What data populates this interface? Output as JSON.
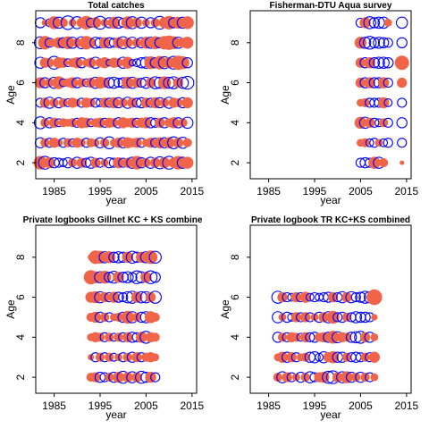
{
  "colors": {
    "positive": "#f06449",
    "negative": "#0000ff",
    "axis": "#000000"
  },
  "chart_data": [
    {
      "type": "scatter",
      "title": "Total catches",
      "xlabel": "year",
      "ylabel": "Age",
      "xlim": [
        1981,
        2016
      ],
      "ylim": [
        1.2,
        9.6
      ],
      "xticks": [
        1985,
        1995,
        2005,
        2015
      ],
      "yticks": [
        2,
        4,
        6,
        8
      ],
      "years": [
        1982,
        1983,
        1984,
        1985,
        1986,
        1987,
        1988,
        1989,
        1990,
        1991,
        1992,
        1993,
        1994,
        1995,
        1996,
        1997,
        1998,
        1999,
        2000,
        2001,
        2002,
        2003,
        2004,
        2005,
        2006,
        2007,
        2008,
        2009,
        2010,
        2011,
        2012,
        2013,
        2014
      ],
      "residuals": {
        "9": [
          -0.5,
          0.2,
          -0.3,
          0.8,
          -0.6,
          0.4,
          -0.9,
          0.3,
          -0.7,
          0.5,
          0.9,
          -0.4,
          0.6,
          -0.8,
          0.3,
          -0.5,
          0.7,
          -0.6,
          -0.4,
          0.8,
          -0.7,
          0.5,
          -0.6,
          0.3,
          -0.5,
          0.4,
          -0.8,
          0.6,
          0.9,
          -0.5,
          0.7,
          -0.6,
          0.8
        ],
        "8": [
          -0.7,
          0.9,
          -0.4,
          0.3,
          0.6,
          -0.5,
          0.8,
          -0.6,
          0.4,
          -0.7,
          0.9,
          0.5,
          -0.6,
          -0.5,
          0.6,
          -0.5,
          -0.4,
          0.6,
          -0.7,
          0.5,
          -0.6,
          0.4,
          -0.5,
          0.7,
          -0.6,
          0.8,
          -0.5,
          0.9,
          1.0,
          0.8,
          -0.6,
          0.5,
          0.7
        ],
        "7": [
          -0.6,
          0.5,
          0.4,
          -0.8,
          0.6,
          0.5,
          -0.3,
          0.4,
          0.6,
          -0.5,
          0.3,
          0.5,
          -0.6,
          0.4,
          0.6,
          -0.2,
          0.5,
          0.4,
          -0.6,
          0.7,
          -0.2,
          -0.3,
          -0.5,
          -0.6,
          0.8,
          -0.5,
          0.9,
          -0.7,
          0.6,
          -0.8,
          1.0,
          0.8,
          -0.5
        ],
        "6": [
          0.6,
          -0.5,
          0.4,
          -0.6,
          0.8,
          -0.3,
          0.4,
          0.6,
          -0.5,
          0.4,
          -0.3,
          0.5,
          -0.6,
          0.7,
          0.5,
          -0.5,
          -0.6,
          -0.4,
          -0.5,
          0.7,
          -0.6,
          0.5,
          -0.4,
          -0.6,
          0.5,
          -0.7,
          -0.6,
          0.8,
          -0.6,
          -0.7,
          0.5,
          -0.6,
          -0.8
        ],
        "5": [
          -0.4,
          0.5,
          -0.6,
          0.4,
          -0.5,
          0.4,
          -0.3,
          0.5,
          0.3,
          -0.4,
          0.5,
          0.4,
          -0.4,
          -0.3,
          0.5,
          -0.4,
          0.6,
          -0.5,
          0.4,
          -0.6,
          0.5,
          -0.4,
          -0.5,
          0.5,
          -0.4,
          0.6,
          -0.5,
          0.4,
          -0.6,
          0.5,
          0.4,
          -0.5,
          0.6
        ],
        "4": [
          -0.7,
          0.4,
          -0.5,
          0.5,
          -0.3,
          0.4,
          0.3,
          0.4,
          -0.4,
          0.6,
          0.5,
          -0.3,
          0.4,
          0.5,
          -0.4,
          0.5,
          0.4,
          -0.5,
          0.6,
          0.4,
          0.5,
          -0.4,
          0.5,
          0.6,
          -0.5,
          -0.4,
          0.5,
          -0.5,
          0.4,
          0.6,
          -0.5,
          0.4,
          -0.6
        ],
        "3": [
          -0.5,
          0.4,
          -0.4,
          0.5,
          0.3,
          -0.4,
          0.4,
          -0.3,
          0.5,
          0.3,
          -0.4,
          0.4,
          0.3,
          -0.5,
          0.4,
          -0.7,
          0.3,
          0.5,
          -0.5,
          0.6,
          0.4,
          0.5,
          -0.4,
          0.3,
          0.5,
          -0.4,
          0.6,
          -0.5,
          0.6,
          -0.7,
          0.5,
          -0.6,
          0.4
        ],
        "2": [
          0.9,
          -0.8,
          0.6,
          -0.5,
          -0.4,
          -0.3,
          -0.5,
          0.4,
          -0.6,
          0.5,
          -0.4,
          -0.6,
          0.5,
          -0.4,
          0.3,
          -0.5,
          -0.4,
          0.6,
          -0.4,
          0.5,
          -0.6,
          0.9,
          -0.5,
          0.4,
          -0.6,
          0.5,
          -0.7,
          0.6,
          -0.8,
          0.5,
          0.9,
          -0.6,
          0.7
        ]
      }
    },
    {
      "type": "scatter",
      "title": "Fisherman-DTU Aqua survey",
      "xlabel": "year",
      "ylabel": "Age",
      "xlim": [
        1981,
        2016
      ],
      "ylim": [
        1.2,
        9.6
      ],
      "xticks": [
        1985,
        1995,
        2005,
        2015
      ],
      "yticks": [
        2,
        4,
        6,
        8
      ],
      "years": [
        2005,
        2006,
        2007,
        2008,
        2009,
        2010,
        2011,
        2014
      ],
      "residuals": {
        "9": [
          -0.4,
          0.6,
          -0.7,
          -0.5,
          -0.6,
          -0.6,
          0.3,
          -0.6
        ],
        "8": [
          0.7,
          -0.6,
          -0.8,
          -0.5,
          -0.6,
          -0.5,
          -0.4,
          -0.5
        ],
        "7": [
          0.5,
          -0.5,
          0.6,
          -0.5,
          -0.6,
          -0.6,
          -0.5,
          1.0
        ],
        "6": [
          0.5,
          -0.5,
          0.6,
          -0.5,
          -0.5,
          0.6,
          -0.4,
          0.5
        ],
        "5": [
          0.3,
          0.4,
          -0.4,
          -0.4,
          -0.4,
          0.6,
          -0.3,
          -0.4
        ],
        "4": [
          0.7,
          -0.6,
          0.5,
          -0.4,
          -0.3,
          0.4,
          -0.4,
          -0.5
        ],
        "3": [
          0.3,
          0.4,
          -0.3,
          -0.4,
          0.3,
          -0.3,
          -0.4,
          -0.4
        ],
        "2": [
          -0.4,
          -0.5,
          -0.4,
          0.7,
          -0.6,
          0.4,
          0.0,
          0.1
        ]
      }
    },
    {
      "type": "scatter",
      "title": "Private logbooks Gillnet KC + KS combine",
      "xlabel": "year",
      "ylabel": "Age",
      "xlim": [
        1981,
        2016
      ],
      "ylim": [
        1.2,
        9.6
      ],
      "xticks": [
        1985,
        1995,
        2005,
        2015
      ],
      "yticks": [
        2,
        4,
        6,
        8
      ],
      "years": [
        1993,
        1994,
        1995,
        1996,
        1997,
        1998,
        1999,
        2000,
        2001,
        2002,
        2003,
        2004,
        2005,
        2006,
        2007
      ],
      "residuals": {
        "8": [
          0.2,
          0.9,
          0.8,
          -0.6,
          0.7,
          -0.5,
          -0.6,
          -0.5,
          0.6,
          -0.7,
          -0.5,
          0.6,
          -0.6,
          0.9,
          -0.7
        ],
        "7": [
          1.0,
          0.7,
          -0.6,
          0.8,
          -0.5,
          -0.7,
          0.6,
          -0.5,
          -0.6,
          -0.4,
          -0.8,
          -0.6,
          0.6,
          -0.8,
          -0.5
        ],
        "6": [
          0.6,
          0.7,
          -0.6,
          0.5,
          -0.4,
          0.6,
          -0.5,
          -0.4,
          -0.6,
          -0.7,
          0.6,
          -0.6,
          -0.6,
          0.5,
          -0.7
        ],
        "5": [
          0.4,
          0.6,
          -0.5,
          0.4,
          -0.4,
          0.3,
          0.4,
          -0.5,
          0.8,
          -0.6,
          0.4,
          -0.5,
          -0.6,
          0.7,
          0.4
        ],
        "4": [
          0.3,
          0.5,
          0.4,
          -0.4,
          0.4,
          -0.3,
          0.4,
          -0.4,
          0.5,
          -0.5,
          -0.4,
          0.6,
          -0.7,
          0.5,
          0.4
        ],
        "3": [
          0.2,
          -0.4,
          0.4,
          -0.4,
          0.4,
          -0.3,
          0.3,
          -0.4,
          0.4,
          -0.5,
          0.5,
          -0.4,
          0.4,
          0.5,
          0.3
        ],
        "2": [
          0.4,
          0.5,
          -0.5,
          -0.4,
          0.4,
          -0.5,
          0.6,
          -0.7,
          0.5,
          -0.6,
          0.5,
          -0.7,
          -0.5,
          0.6,
          -0.4
        ]
      }
    },
    {
      "type": "scatter",
      "title": "Private logbook TR KC+KS combined",
      "xlabel": "year",
      "ylabel": "Age",
      "xlim": [
        1981,
        2016
      ],
      "ylim": [
        1.2,
        9.6
      ],
      "xticks": [
        1985,
        1995,
        2005,
        2015
      ],
      "yticks": [
        2,
        4,
        6,
        8
      ],
      "years": [
        1987,
        1988,
        1989,
        1990,
        1991,
        1992,
        1993,
        1994,
        1995,
        1996,
        1997,
        1998,
        1999,
        2000,
        2001,
        2002,
        2003,
        2004,
        2005,
        2006,
        2007,
        2008
      ],
      "residuals": {
        "6": [
          -0.7,
          0.5,
          -0.4,
          -0.3,
          0.5,
          -0.4,
          0.6,
          -0.3,
          -0.4,
          -0.3,
          -0.4,
          -0.5,
          0.5,
          -0.4,
          -0.6,
          0.5,
          -0.6,
          -0.4,
          -0.5,
          -0.7,
          -0.6,
          1.2
        ],
        "5": [
          -0.6,
          0.3,
          -0.5,
          -0.3,
          0.5,
          -0.4,
          0.5,
          -0.4,
          0.3,
          -0.5,
          0.5,
          -0.6,
          0.8,
          -0.4,
          -0.5,
          0.4,
          -0.4,
          -0.6,
          -0.5,
          -0.5,
          -0.4,
          0.2
        ],
        "4": [
          -0.5,
          0.4,
          -0.4,
          0.5,
          0.4,
          -0.3,
          0.5,
          -0.4,
          -0.5,
          0.4,
          0.5,
          -0.5,
          0.8,
          -0.6,
          0.5,
          0.4,
          -0.5,
          -0.6,
          -0.7,
          0.5,
          -0.5,
          0.3
        ],
        "3": [
          0.3,
          0.6,
          -0.5,
          0.5,
          -0.4,
          0.3,
          0.4,
          -0.5,
          -0.6,
          -0.3,
          -0.6,
          0.5,
          0.7,
          -0.5,
          -0.5,
          0.4,
          -0.4,
          -0.5,
          -0.4,
          0.4,
          -0.4,
          0.6
        ],
        "2": [
          0.4,
          -0.6,
          0.5,
          -0.4,
          0.3,
          -0.5,
          0.4,
          -0.6,
          -0.4,
          0.5,
          0.6,
          -0.7,
          -0.8,
          0.5,
          -0.6,
          0.7,
          -0.5,
          0.4,
          -0.5,
          0.4,
          -0.4,
          0.3
        ]
      }
    }
  ]
}
